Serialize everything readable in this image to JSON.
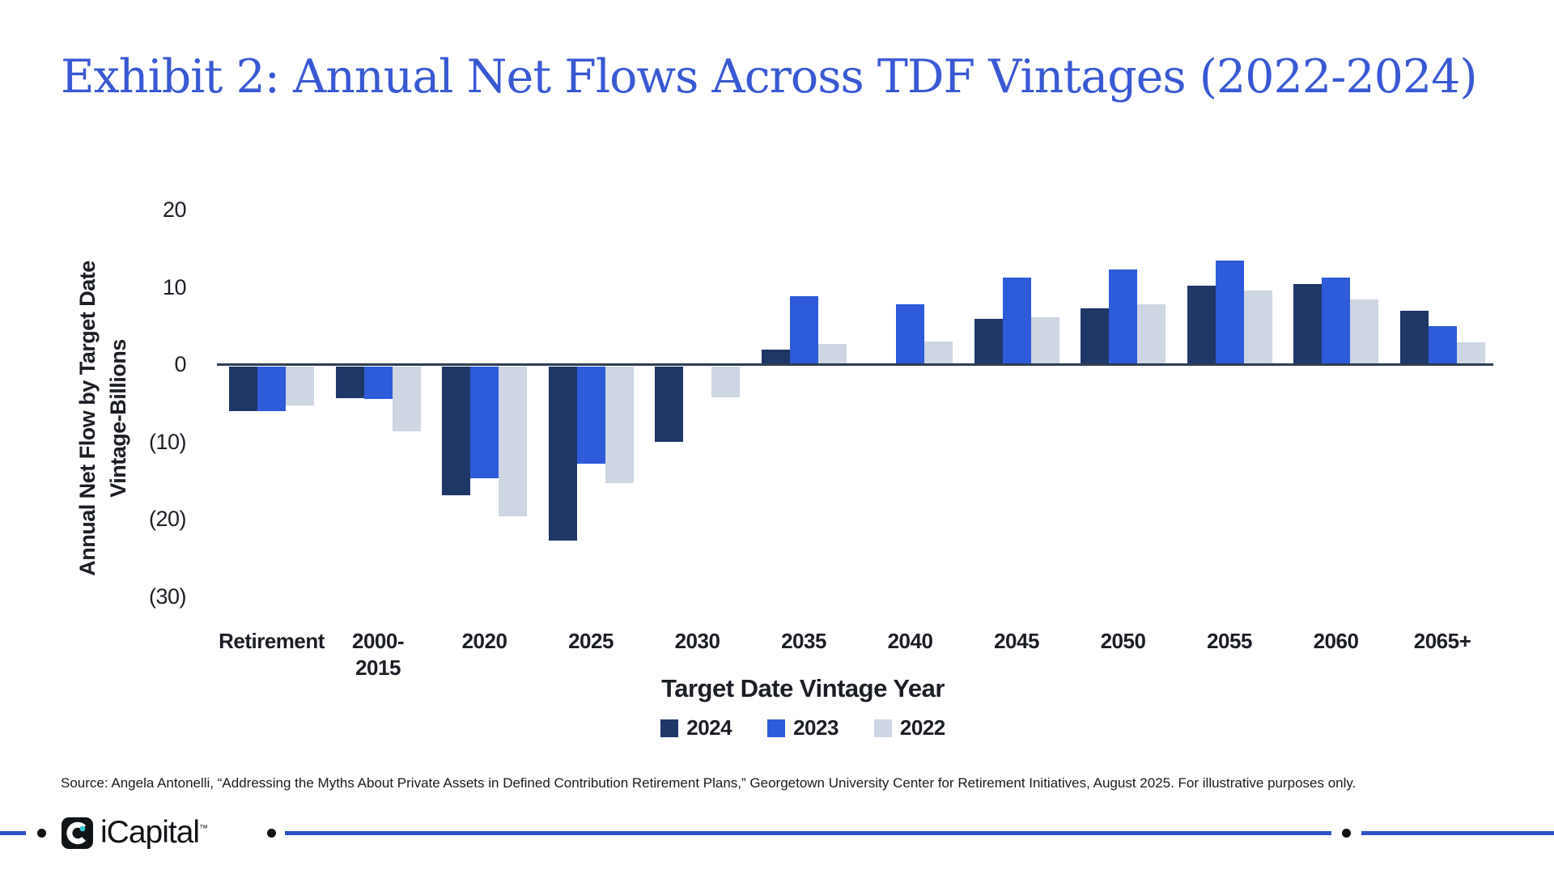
{
  "title": {
    "text": "Exhibit 2: Annual Net Flows Across TDF Vintages (2022-2024)",
    "color": "#3959d4"
  },
  "chart_data": {
    "type": "bar",
    "title": "Exhibit 2: Annual Net Flows Across TDF Vintages (2022-2024)",
    "categories": [
      {
        "label": "Retirement",
        "lines": [
          "Retirement"
        ]
      },
      {
        "label": "2000-2015",
        "lines": [
          "2000-",
          "2015"
        ]
      },
      {
        "label": "2020",
        "lines": [
          "2020"
        ]
      },
      {
        "label": "2025",
        "lines": [
          "2025"
        ]
      },
      {
        "label": "2030",
        "lines": [
          "2030"
        ]
      },
      {
        "label": "2035",
        "lines": [
          "2035"
        ]
      },
      {
        "label": "2040",
        "lines": [
          "2040"
        ]
      },
      {
        "label": "2045",
        "lines": [
          "2045"
        ]
      },
      {
        "label": "2050",
        "lines": [
          "2050"
        ]
      },
      {
        "label": "2055",
        "lines": [
          "2055"
        ]
      },
      {
        "label": "2060",
        "lines": [
          "2060"
        ]
      },
      {
        "label": "2065+",
        "lines": [
          "2065+"
        ]
      }
    ],
    "series": [
      {
        "name": "2024",
        "color": "#1e3767",
        "values": [
          -5.8,
          -4.1,
          -16.6,
          -22.5,
          -9.7,
          1.9,
          0,
          5.9,
          7.2,
          10.2,
          10.4,
          6.9
        ]
      },
      {
        "name": "2023",
        "color": "#2d5bd9",
        "values": [
          -5.8,
          -4.2,
          -14.5,
          -12.6,
          0,
          8.8,
          7.7,
          11.2,
          12.3,
          13.4,
          11.2,
          4.9
        ]
      },
      {
        "name": "2022",
        "color": "#cdd6e2",
        "values": [
          -5.0,
          -8.4,
          -19.4,
          -15.1,
          -4.0,
          2.6,
          2.9,
          6.1,
          7.8,
          9.5,
          8.4,
          2.8
        ]
      }
    ],
    "y_ticks": [
      {
        "value": 20,
        "label": "20"
      },
      {
        "value": 10,
        "label": "10"
      },
      {
        "value": 0,
        "label": "0"
      },
      {
        "value": -10,
        "label": "(10)"
      },
      {
        "value": -20,
        "label": "(20)"
      },
      {
        "value": -30,
        "label": "(30)"
      }
    ],
    "ylim": [
      -30,
      20
    ],
    "grid": false,
    "legend_position": "bottom",
    "xlabel": "Target Date Vintage Year",
    "ylabel": "Annual Net Flow by Target Date Vintage-Billions",
    "ylabel_lines": [
      "Annual Net Flow by Target Date",
      "Vintage-Billions"
    ]
  },
  "source": {
    "text": "Source: Angela Antonelli, “Addressing the Myths About Private Assets in Defined Contribution Retirement Plans,” Georgetown University Center for Retirement Initiatives, August 2025. For illustrative purposes only."
  },
  "footer": {
    "brand": "iCapital",
    "trademark": "™",
    "line_color": "#2e52c7",
    "logo_bg": "#111417",
    "logo_dot_color": "#39c6d4"
  }
}
